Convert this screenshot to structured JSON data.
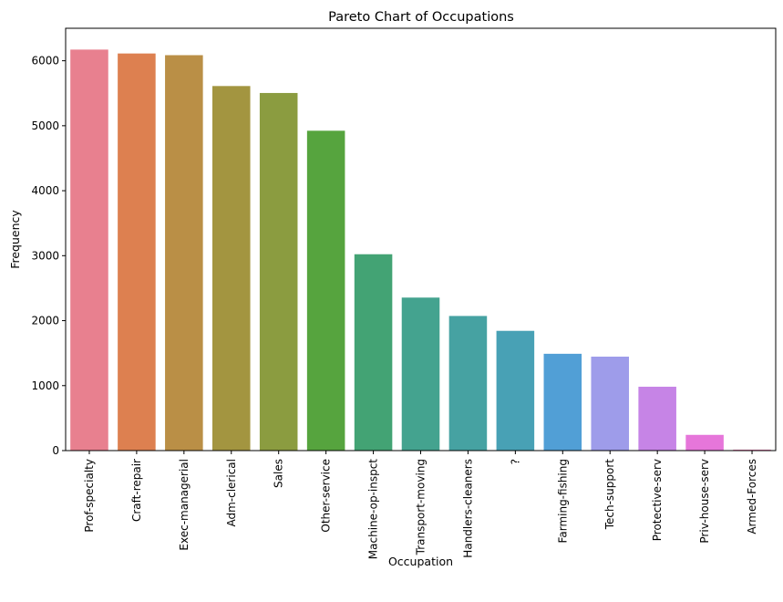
{
  "chart_data": {
    "type": "bar",
    "title": "Pareto Chart of Occupations",
    "xlabel": "Occupation",
    "ylabel": "Frequency",
    "ylim": [
      0,
      6500
    ],
    "yticks": [
      0,
      1000,
      2000,
      3000,
      4000,
      5000,
      6000
    ],
    "grid": false,
    "legend": "none",
    "categories": [
      "Prof-specialty",
      "Craft-repair",
      "Exec-managerial",
      "Adm-clerical",
      "Sales",
      "Other-service",
      "Machine-op-inspct",
      "Transport-moving",
      "Handlers-cleaners",
      "?",
      "Farming-fishing",
      "Tech-support",
      "Protective-serv",
      "Priv-house-serv",
      "Armed-Forces"
    ],
    "values": [
      6172,
      6112,
      6086,
      5611,
      5504,
      4923,
      3022,
      2355,
      2072,
      1843,
      1490,
      1446,
      983,
      242,
      15
    ],
    "colors": [
      "#e8808f",
      "#dd8050",
      "#ba8f46",
      "#a39540",
      "#8b9c40",
      "#56a43e",
      "#43a374",
      "#44a38f",
      "#46a2a2",
      "#48a1b5",
      "#519fd6",
      "#9e9cea",
      "#c684e6",
      "#e676da",
      "#e87dae"
    ]
  }
}
